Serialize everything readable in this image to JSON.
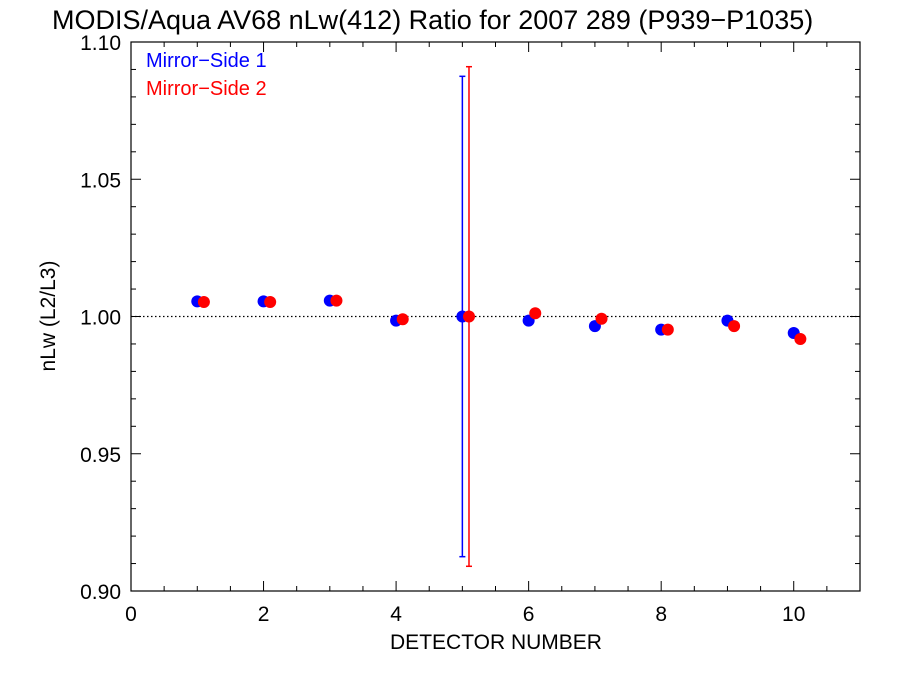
{
  "chart_data": {
    "type": "scatter",
    "title": "MODIS/Aqua AV68 nLw(412) Ratio for 2007 289 (P939−P1035)",
    "xlabel": "DETECTOR NUMBER",
    "ylabel": "nLw (L2/L3)",
    "xlim": [
      0,
      11
    ],
    "ylim": [
      0.9,
      1.1
    ],
    "x_ticks": [
      0,
      2,
      4,
      6,
      8,
      10
    ],
    "x_tick_labels": [
      "0",
      "2",
      "4",
      "6",
      "8",
      "10"
    ],
    "y_ticks": [
      0.9,
      0.95,
      1.0,
      1.05,
      1.1
    ],
    "y_tick_labels": [
      "0.90",
      "0.95",
      "1.00",
      "1.05",
      "1.10"
    ],
    "reference_line": 1.0,
    "legend_position": "top-left",
    "grid": false,
    "series": [
      {
        "name": "Mirror−Side 1",
        "color": "#0000ff",
        "x": [
          1,
          2,
          3,
          4,
          5,
          6,
          7,
          8,
          9,
          10
        ],
        "y": [
          1.0055,
          1.0055,
          1.0058,
          0.9985,
          1.0,
          0.9985,
          0.9965,
          0.9952,
          0.9985,
          0.994
        ],
        "error_bar": {
          "x": 5,
          "low": 0.9125,
          "high": 1.0875
        }
      },
      {
        "name": "Mirror−Side 2",
        "color": "#ff0000",
        "x": [
          1.1,
          2.1,
          3.1,
          4.1,
          5.1,
          6.1,
          7.1,
          8.1,
          9.1,
          10.1
        ],
        "y": [
          1.0053,
          1.0053,
          1.0058,
          0.999,
          1.0,
          1.0012,
          0.9992,
          0.9952,
          0.9965,
          0.9918
        ],
        "error_bar": {
          "x": 5.1,
          "low": 0.909,
          "high": 1.091
        }
      }
    ]
  }
}
